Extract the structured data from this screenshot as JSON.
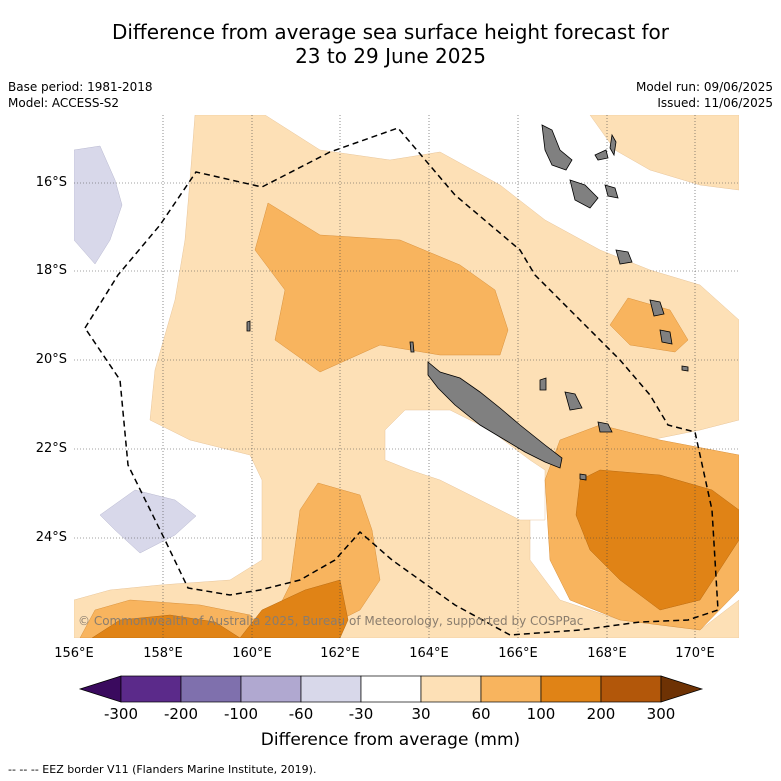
{
  "title": {
    "line1": "Difference from average sea surface height forecast for",
    "line2": "23 to 29 June 2025"
  },
  "meta": {
    "base_period": "Base period: 1981-2018",
    "model": "Model: ACCESS-S2",
    "model_run": "Model run: 09/06/2025",
    "issued": "Issued: 11/06/2025"
  },
  "axes": {
    "latitudes": [
      "16°S",
      "18°S",
      "20°S",
      "22°S",
      "24°S"
    ],
    "longitudes": [
      "156°E",
      "158°E",
      "160°E",
      "162°E",
      "164°E",
      "166°E",
      "168°E",
      "170°E"
    ]
  },
  "copyright": "© Commonwealth of Australia 2025, Bureau of Meteorology, supported by COSPPac",
  "colorbar": {
    "labels": [
      "-300",
      "-200",
      "-100",
      "-60",
      "-30",
      "30",
      "60",
      "100",
      "200",
      "300"
    ],
    "colors": [
      "#5b2a8a",
      "#7f70ad",
      "#b0a8d0",
      "#d8d8ea",
      "#ffffff",
      "#fde0b6",
      "#f8b45e",
      "#e08316",
      "#b2570a"
    ],
    "under_color": "#3a0a5e",
    "over_color": "#6e3204",
    "title": "Difference from average (mm)"
  },
  "footer": "--  --  -- EEZ border V11 (Flanders Marine Institute, 2019)."
}
